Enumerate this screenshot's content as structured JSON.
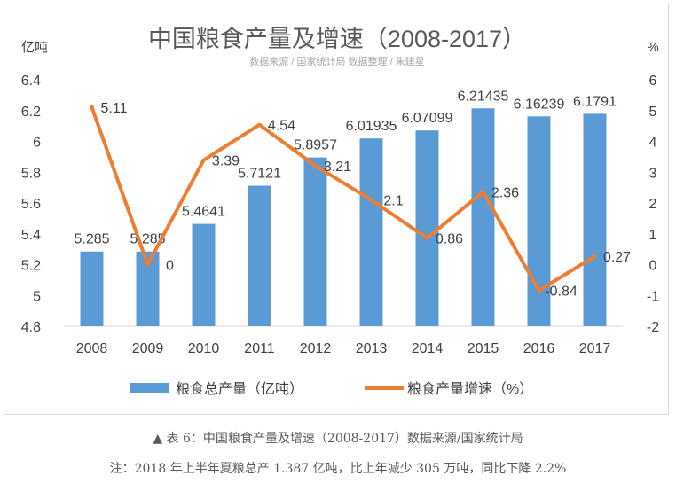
{
  "chart_data": {
    "type": "bar+line",
    "title": "中国粮食产量及增速（2008-2017）",
    "subtitle": "数据来源 / 国家统计局 数据整理 /  朱建星",
    "y_left_unit": "亿吨",
    "y_right_unit": "%",
    "categories": [
      "2008",
      "2009",
      "2010",
      "2011",
      "2012",
      "2013",
      "2014",
      "2015",
      "2016",
      "2017"
    ],
    "y_left_ticks": [
      "6.4",
      "6.2",
      "6",
      "5.8",
      "5.6",
      "5.4",
      "5.2",
      "5",
      "4.8"
    ],
    "y_right_ticks": [
      "6",
      "5",
      "4",
      "3",
      "2",
      "1",
      "0",
      "-1",
      "-2"
    ],
    "ylim_left": [
      4.8,
      6.4
    ],
    "ylim_right": [
      -2,
      6
    ],
    "series": [
      {
        "name": "粮食总产量（亿吨）",
        "type": "bar",
        "axis": "left",
        "color": "#5b9bd5",
        "values": [
          5.285,
          5.285,
          5.4641,
          5.7121,
          5.8957,
          6.01935,
          6.07099,
          6.21435,
          6.16239,
          6.1791
        ],
        "labels": [
          "5.285",
          "5.285",
          "5.4641",
          "5.7121",
          "5.8957",
          "6.01935",
          "6.07099",
          "6.21435",
          "6.16239",
          "6.1791"
        ]
      },
      {
        "name": "粮食产量增速（%）",
        "type": "line",
        "axis": "right",
        "color": "#ed7d31",
        "values": [
          5.11,
          0,
          3.39,
          4.54,
          3.21,
          2.1,
          0.86,
          2.36,
          -0.84,
          0.27
        ],
        "labels": [
          "5.11",
          "0",
          "3.39",
          "4.54",
          "3.21",
          "2.1",
          "0.86",
          "2.36",
          "-0.84",
          "0.27"
        ]
      }
    ],
    "grid": false,
    "legend_position": "bottom"
  },
  "caption": "▲ 表 6：中国粮食产量及增速（2008-2017）数据来源/国家统计局",
  "note": "注：2018 年上半年夏粮总产 1.387 亿吨，比上年减少 305 万吨，同比下降 2.2%"
}
